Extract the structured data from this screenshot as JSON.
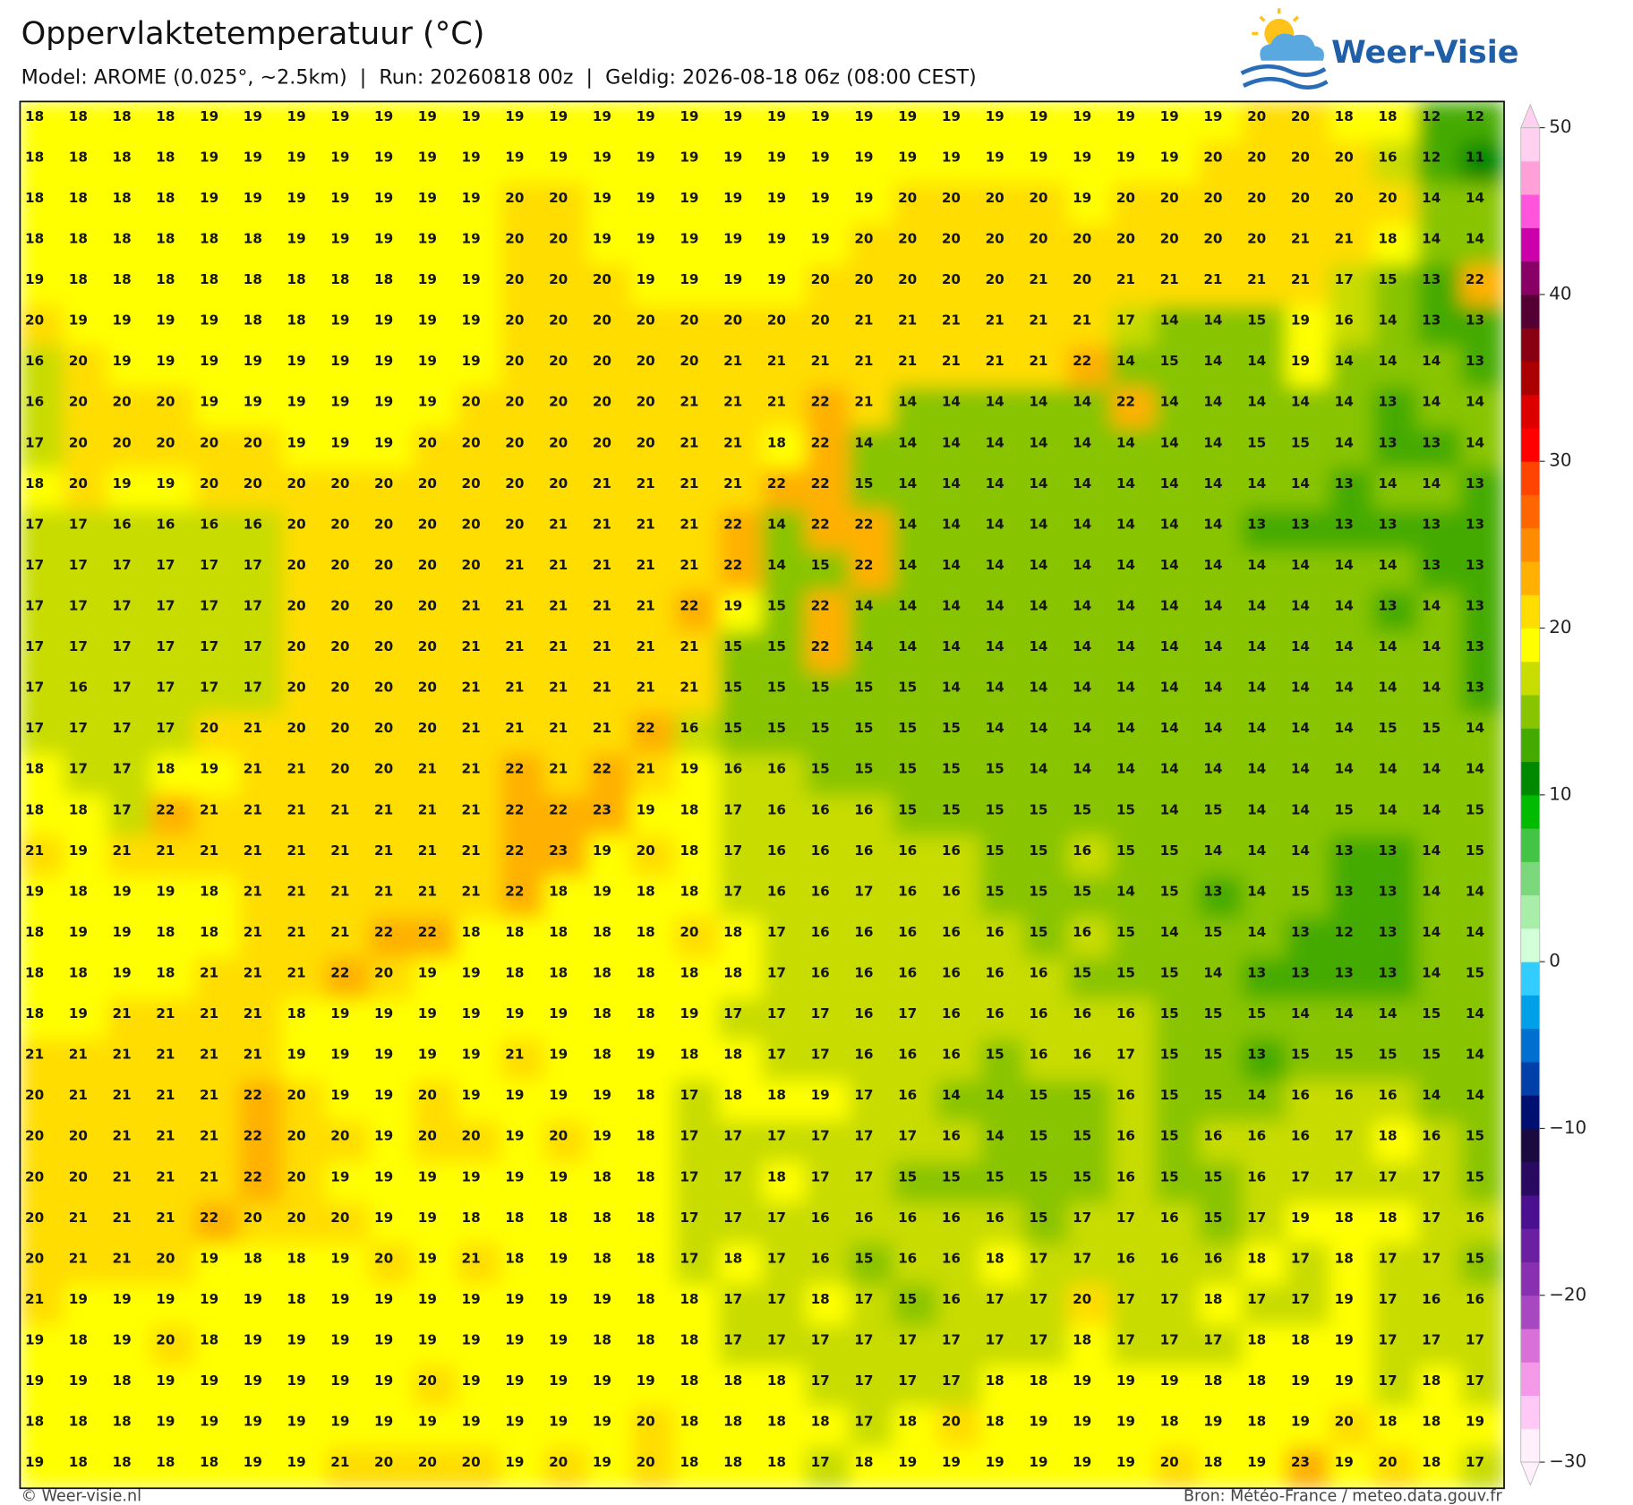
{
  "header": {
    "title": "Oppervlaktetemperatuur (°C)",
    "subtitle": "Model: AROME (0.025°, ~2.5km)  |  Run: 20260818 00z  |  Geldig: 2026-08-18 06z (08:00 CEST)",
    "logo": "Weer-Visie"
  },
  "map": {
    "grid": [
      [
        18,
        18,
        18,
        18,
        19,
        19,
        19,
        19,
        19,
        19,
        19,
        19,
        19,
        19,
        19,
        19,
        19,
        19,
        19,
        19,
        19,
        19,
        19,
        19,
        19,
        19,
        19,
        19,
        20,
        20,
        18,
        18,
        12,
        12
      ],
      [
        18,
        18,
        18,
        18,
        19,
        19,
        19,
        19,
        19,
        19,
        19,
        19,
        19,
        19,
        19,
        19,
        19,
        19,
        19,
        19,
        19,
        19,
        19,
        19,
        19,
        19,
        19,
        20,
        20,
        20,
        20,
        16,
        12,
        11
      ],
      [
        18,
        18,
        18,
        18,
        19,
        19,
        19,
        19,
        19,
        19,
        19,
        20,
        20,
        19,
        19,
        19,
        19,
        19,
        19,
        19,
        20,
        20,
        20,
        20,
        19,
        20,
        20,
        20,
        20,
        20,
        20,
        20,
        14,
        14
      ],
      [
        18,
        18,
        18,
        18,
        18,
        18,
        19,
        19,
        19,
        19,
        19,
        20,
        20,
        19,
        19,
        19,
        19,
        19,
        19,
        20,
        20,
        20,
        20,
        20,
        20,
        20,
        20,
        20,
        20,
        21,
        21,
        18,
        14,
        14
      ],
      [
        19,
        18,
        18,
        18,
        18,
        18,
        18,
        18,
        18,
        19,
        19,
        20,
        20,
        20,
        19,
        19,
        19,
        19,
        20,
        20,
        20,
        20,
        20,
        21,
        20,
        21,
        21,
        21,
        21,
        21,
        17,
        15,
        13,
        22
      ],
      [
        20,
        19,
        19,
        19,
        19,
        18,
        18,
        19,
        19,
        19,
        19,
        20,
        20,
        20,
        20,
        20,
        20,
        20,
        20,
        21,
        21,
        21,
        21,
        21,
        21,
        17,
        14,
        14,
        15,
        19,
        16,
        14,
        13,
        13
      ],
      [
        16,
        20,
        19,
        19,
        19,
        19,
        19,
        19,
        19,
        19,
        19,
        20,
        20,
        20,
        20,
        20,
        21,
        21,
        21,
        21,
        21,
        21,
        21,
        21,
        22,
        14,
        15,
        14,
        14,
        19,
        14,
        14,
        14,
        13
      ],
      [
        16,
        20,
        20,
        20,
        19,
        19,
        19,
        19,
        19,
        19,
        20,
        20,
        20,
        20,
        20,
        21,
        21,
        21,
        22,
        21,
        14,
        14,
        14,
        14,
        14,
        22,
        14,
        14,
        14,
        14,
        14,
        13,
        14,
        14
      ],
      [
        17,
        20,
        20,
        20,
        20,
        20,
        19,
        19,
        19,
        20,
        20,
        20,
        20,
        20,
        20,
        21,
        21,
        18,
        22,
        14,
        14,
        14,
        14,
        14,
        14,
        14,
        14,
        14,
        15,
        15,
        14,
        13,
        13,
        14
      ],
      [
        18,
        20,
        19,
        19,
        20,
        20,
        20,
        20,
        20,
        20,
        20,
        20,
        20,
        21,
        21,
        21,
        21,
        22,
        22,
        15,
        14,
        14,
        14,
        14,
        14,
        14,
        14,
        14,
        14,
        14,
        13,
        14,
        14,
        13
      ],
      [
        17,
        17,
        16,
        16,
        16,
        16,
        20,
        20,
        20,
        20,
        20,
        20,
        21,
        21,
        21,
        21,
        22,
        14,
        22,
        22,
        14,
        14,
        14,
        14,
        14,
        14,
        14,
        14,
        13,
        13,
        13,
        13,
        13,
        13
      ],
      [
        17,
        17,
        17,
        17,
        17,
        17,
        20,
        20,
        20,
        20,
        20,
        21,
        21,
        21,
        21,
        21,
        22,
        14,
        15,
        22,
        14,
        14,
        14,
        14,
        14,
        14,
        14,
        14,
        14,
        14,
        14,
        14,
        13,
        13
      ],
      [
        17,
        17,
        17,
        17,
        17,
        17,
        20,
        20,
        20,
        20,
        21,
        21,
        21,
        21,
        21,
        22,
        19,
        15,
        22,
        14,
        14,
        14,
        14,
        14,
        14,
        14,
        14,
        14,
        14,
        14,
        14,
        13,
        14,
        13
      ],
      [
        17,
        17,
        17,
        17,
        17,
        17,
        20,
        20,
        20,
        20,
        21,
        21,
        21,
        21,
        21,
        21,
        15,
        15,
        22,
        14,
        14,
        14,
        14,
        14,
        14,
        14,
        14,
        14,
        14,
        14,
        14,
        14,
        14,
        13
      ],
      [
        17,
        16,
        17,
        17,
        17,
        17,
        20,
        20,
        20,
        20,
        21,
        21,
        21,
        21,
        21,
        21,
        15,
        15,
        15,
        15,
        15,
        14,
        14,
        14,
        14,
        14,
        14,
        14,
        14,
        14,
        14,
        14,
        14,
        13
      ],
      [
        17,
        17,
        17,
        17,
        20,
        21,
        20,
        20,
        20,
        20,
        21,
        21,
        21,
        21,
        22,
        16,
        15,
        15,
        15,
        15,
        15,
        15,
        14,
        14,
        14,
        14,
        14,
        14,
        14,
        14,
        14,
        15,
        15,
        14
      ],
      [
        18,
        17,
        17,
        18,
        19,
        21,
        21,
        20,
        20,
        21,
        21,
        22,
        21,
        22,
        21,
        19,
        16,
        16,
        15,
        15,
        15,
        15,
        15,
        14,
        14,
        14,
        14,
        14,
        14,
        14,
        14,
        14,
        14,
        14
      ],
      [
        18,
        18,
        17,
        22,
        21,
        21,
        21,
        21,
        21,
        21,
        21,
        22,
        22,
        23,
        19,
        18,
        17,
        16,
        16,
        16,
        15,
        15,
        15,
        15,
        15,
        15,
        14,
        15,
        14,
        14,
        15,
        14,
        14,
        15
      ],
      [
        21,
        19,
        21,
        21,
        21,
        21,
        21,
        21,
        21,
        21,
        21,
        22,
        23,
        19,
        20,
        18,
        17,
        16,
        16,
        16,
        16,
        16,
        15,
        15,
        16,
        15,
        15,
        14,
        14,
        14,
        13,
        13,
        14,
        15
      ],
      [
        19,
        18,
        19,
        19,
        18,
        21,
        21,
        21,
        21,
        21,
        21,
        22,
        18,
        19,
        18,
        18,
        17,
        16,
        16,
        17,
        16,
        16,
        15,
        15,
        15,
        14,
        15,
        13,
        14,
        15,
        13,
        13,
        14,
        14
      ],
      [
        18,
        19,
        19,
        18,
        18,
        21,
        21,
        21,
        22,
        22,
        18,
        18,
        18,
        18,
        18,
        20,
        18,
        17,
        16,
        16,
        16,
        16,
        16,
        15,
        16,
        15,
        14,
        15,
        14,
        13,
        12,
        13,
        14,
        14
      ],
      [
        18,
        18,
        19,
        18,
        21,
        21,
        21,
        22,
        20,
        19,
        19,
        18,
        18,
        18,
        18,
        18,
        18,
        17,
        16,
        16,
        16,
        16,
        16,
        16,
        15,
        15,
        15,
        14,
        13,
        13,
        13,
        13,
        14,
        15
      ],
      [
        18,
        19,
        21,
        21,
        21,
        21,
        18,
        19,
        19,
        19,
        19,
        19,
        19,
        18,
        18,
        19,
        17,
        17,
        17,
        16,
        17,
        16,
        16,
        16,
        16,
        16,
        15,
        15,
        15,
        14,
        14,
        14,
        15,
        14
      ],
      [
        21,
        21,
        21,
        21,
        21,
        21,
        19,
        19,
        19,
        19,
        19,
        21,
        19,
        18,
        19,
        18,
        18,
        17,
        17,
        16,
        16,
        16,
        15,
        16,
        16,
        17,
        15,
        15,
        13,
        15,
        15,
        15,
        15,
        14
      ],
      [
        20,
        21,
        21,
        21,
        21,
        22,
        20,
        19,
        19,
        20,
        19,
        19,
        19,
        19,
        18,
        17,
        18,
        18,
        19,
        17,
        16,
        14,
        14,
        15,
        15,
        16,
        15,
        15,
        14,
        16,
        16,
        16,
        14,
        14
      ],
      [
        20,
        20,
        21,
        21,
        21,
        22,
        20,
        20,
        19,
        20,
        20,
        19,
        20,
        19,
        18,
        17,
        17,
        17,
        17,
        17,
        17,
        16,
        14,
        15,
        15,
        16,
        15,
        16,
        16,
        16,
        17,
        18,
        16,
        15
      ],
      [
        20,
        20,
        21,
        21,
        21,
        22,
        20,
        19,
        19,
        19,
        19,
        19,
        19,
        18,
        18,
        17,
        17,
        18,
        17,
        17,
        15,
        15,
        15,
        15,
        15,
        16,
        15,
        15,
        16,
        17,
        17,
        17,
        17,
        15
      ],
      [
        20,
        21,
        21,
        21,
        22,
        20,
        20,
        20,
        19,
        19,
        18,
        18,
        18,
        18,
        18,
        17,
        17,
        17,
        16,
        16,
        16,
        16,
        16,
        15,
        17,
        17,
        16,
        15,
        17,
        19,
        18,
        18,
        17,
        16
      ],
      [
        20,
        21,
        21,
        20,
        19,
        18,
        18,
        19,
        20,
        19,
        21,
        18,
        19,
        18,
        18,
        17,
        18,
        17,
        16,
        15,
        16,
        16,
        18,
        17,
        17,
        16,
        16,
        16,
        18,
        17,
        18,
        17,
        17,
        15
      ],
      [
        21,
        19,
        19,
        19,
        19,
        19,
        18,
        19,
        19,
        19,
        19,
        19,
        19,
        19,
        18,
        18,
        17,
        17,
        18,
        17,
        15,
        16,
        17,
        17,
        20,
        17,
        17,
        18,
        17,
        17,
        19,
        17,
        16,
        16
      ],
      [
        19,
        18,
        19,
        20,
        18,
        19,
        19,
        19,
        19,
        19,
        19,
        19,
        19,
        18,
        18,
        18,
        17,
        17,
        17,
        17,
        17,
        17,
        17,
        17,
        18,
        17,
        17,
        17,
        18,
        18,
        19,
        17,
        17,
        17
      ],
      [
        19,
        19,
        18,
        19,
        19,
        19,
        19,
        19,
        19,
        20,
        19,
        19,
        19,
        19,
        19,
        18,
        18,
        18,
        17,
        17,
        17,
        17,
        18,
        18,
        19,
        19,
        19,
        18,
        18,
        19,
        19,
        17,
        18,
        17
      ],
      [
        18,
        18,
        18,
        19,
        19,
        19,
        19,
        19,
        19,
        19,
        19,
        19,
        19,
        19,
        20,
        18,
        18,
        18,
        18,
        17,
        18,
        20,
        18,
        19,
        19,
        19,
        18,
        19,
        18,
        19,
        20,
        18,
        18,
        19
      ],
      [
        19,
        18,
        18,
        18,
        18,
        19,
        19,
        21,
        20,
        20,
        20,
        19,
        20,
        19,
        20,
        18,
        18,
        18,
        17,
        18,
        19,
        19,
        19,
        19,
        19,
        19,
        20,
        18,
        19,
        23,
        19,
        20,
        18,
        17
      ]
    ]
  },
  "colorbar": {
    "lim": [
      -30,
      50
    ],
    "ticks": [
      {
        "value": -30,
        "label": "−30"
      },
      {
        "value": -20,
        "label": "−20"
      },
      {
        "value": -10,
        "label": "−10"
      },
      0,
      10,
      20,
      30,
      40,
      50
    ],
    "colors": [
      "#fff0fb",
      "#ffc8f5",
      "#f498e8",
      "#d870d8",
      "#a848c0",
      "#8830b0",
      "#6a20a0",
      "#4a1090",
      "#2a0a60",
      "#1a0a40",
      "#001070",
      "#0040a8",
      "#0070d0",
      "#00a0e8",
      "#33ccff",
      "#d0ffd8",
      "#a8eea8",
      "#7ad87a",
      "#44c444",
      "#00bb00",
      "#008800",
      "#44aa00",
      "#88c400",
      "#c8dc00",
      "#ffff00",
      "#ffdd00",
      "#ffb000",
      "#ff8c00",
      "#ff6600",
      "#ff4400",
      "#ff0000",
      "#dd0000",
      "#aa0000",
      "#880011",
      "#550033",
      "#880066",
      "#cc00aa",
      "#ff55dd",
      "#ffa0d8",
      "#ffd0f0"
    ]
  },
  "footer": {
    "left": "© Weer-visie.nl",
    "right": "Bron: Météo-France / meteo.data.gouv.fr"
  }
}
